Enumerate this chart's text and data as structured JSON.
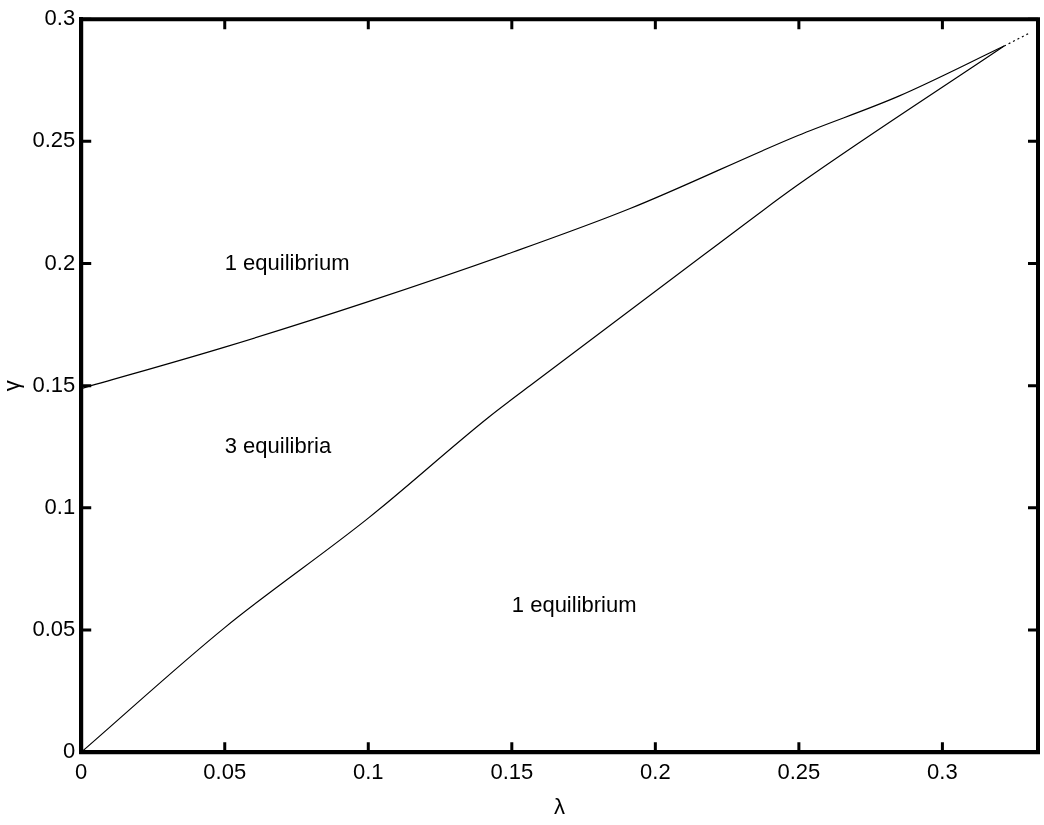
{
  "chart_data": {
    "type": "line",
    "xlabel": "λ",
    "ylabel": "γ",
    "xlim": [
      0,
      0.3333
    ],
    "ylim": [
      0,
      0.3
    ],
    "xticks": [
      0,
      0.05,
      0.1,
      0.15,
      0.2,
      0.25,
      0.3
    ],
    "yticks": [
      0,
      0.05,
      0.1,
      0.15,
      0.2,
      0.25,
      0.3
    ],
    "grid": false,
    "legend": false,
    "marker": "none",
    "annotations": [
      "1 equilibrium",
      "3 equilibria",
      "1 equilibrium"
    ],
    "series": [
      {
        "color": "#000000",
        "line_style": "solid",
        "x": [
          0,
          0.05,
          0.1,
          0.15,
          0.191,
          0.2497,
          0.285,
          0.3215
        ],
        "values": [
          0.1488,
          0.1658,
          0.1844,
          0.2045,
          0.2224,
          0.2524,
          0.2686,
          0.289
        ]
      },
      {
        "color": "#000000",
        "line_style": "solid",
        "x": [
          0,
          0.05,
          0.1,
          0.1415,
          0.1563,
          0.2203,
          0.2497,
          0.3215
        ],
        "values": [
          0,
          0.051,
          0.0958,
          0.1367,
          0.15,
          0.2066,
          0.2322,
          0.289
        ]
      },
      {
        "color": "#000000",
        "line_style": "dotted",
        "x": [
          0.3215,
          0.3306
        ],
        "values": [
          0.289,
          0.2945
        ]
      }
    ]
  }
}
